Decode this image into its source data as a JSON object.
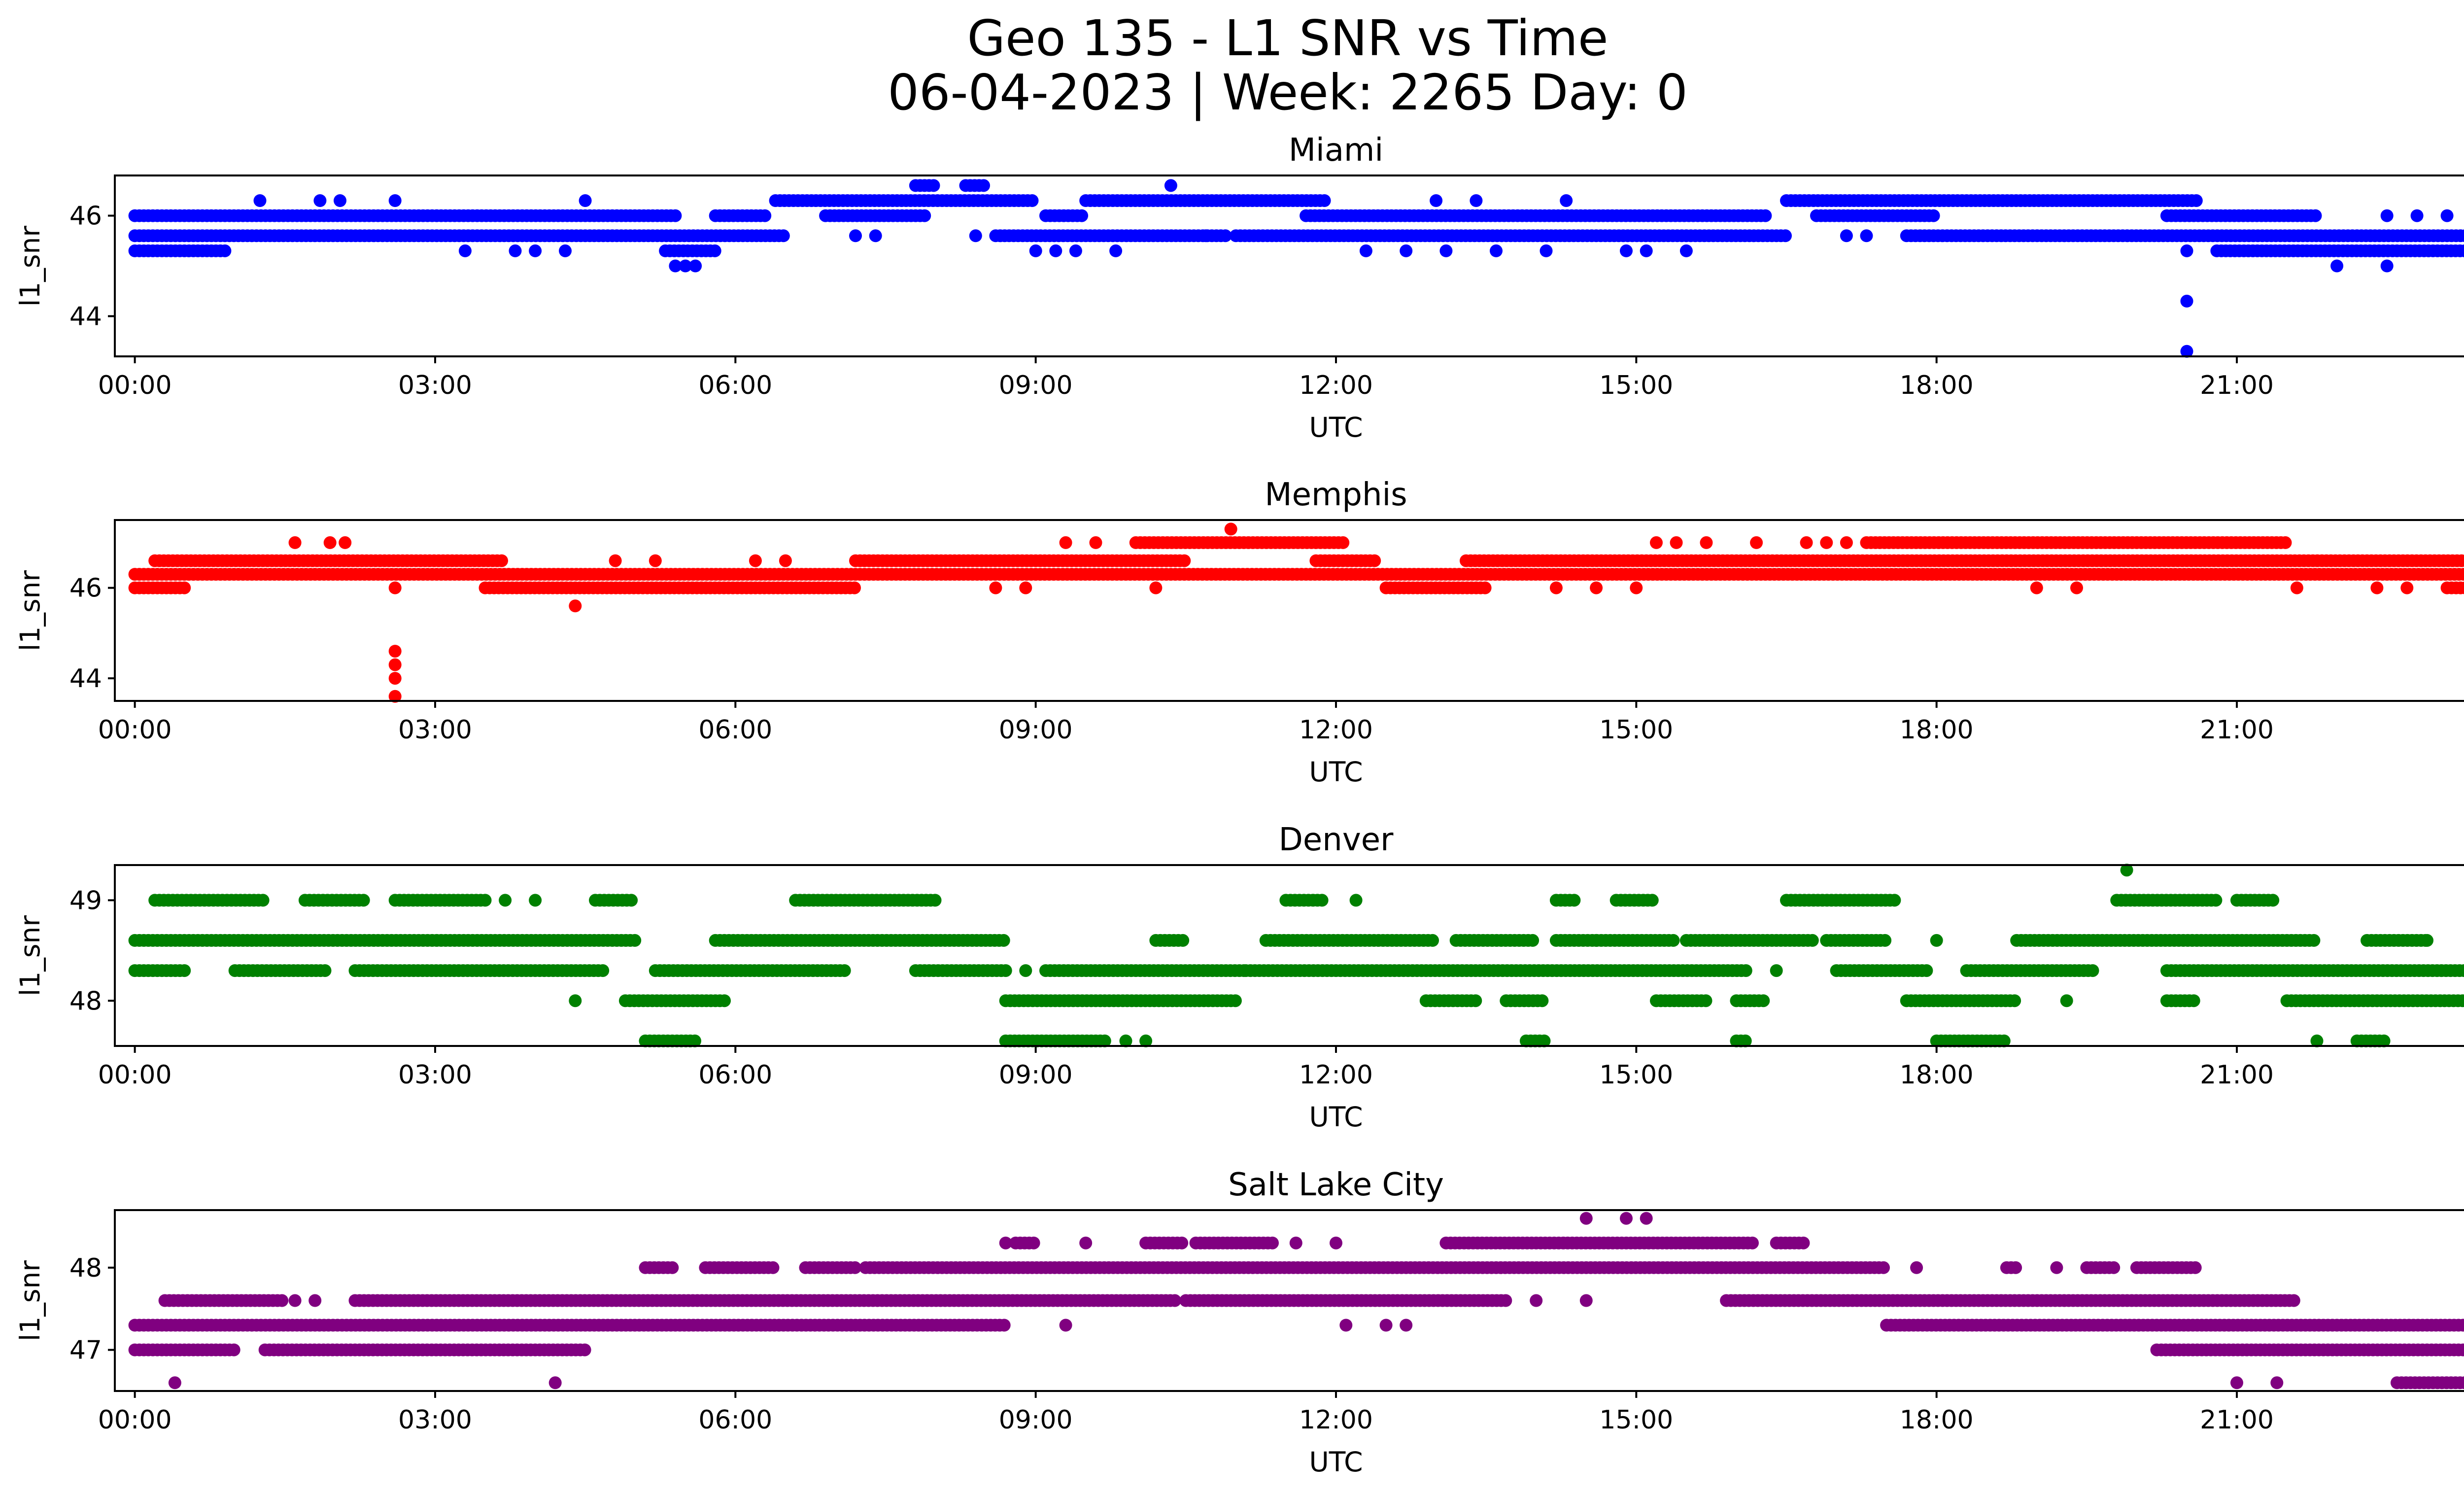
{
  "figure": {
    "title_line1": "Geo 135 - L1 SNR vs Time",
    "title_line2": "06-04-2023 | Week: 2265 Day: 0"
  },
  "chart_data": [
    {
      "type": "scatter",
      "title": "Miami",
      "xlabel": "UTC",
      "ylabel": "l1_snr",
      "color": "#0000ff",
      "xlim": [
        -0.2,
        24.2
      ],
      "ylim": [
        43.2,
        46.8
      ],
      "xticks": [
        "00:00",
        "03:00",
        "06:00",
        "09:00",
        "12:00",
        "15:00",
        "18:00",
        "21:00",
        "00:00"
      ],
      "yticks": [
        44,
        46
      ],
      "dense_bands": [
        {
          "y": 46.0,
          "ranges": [
            [
              0.0,
              5.4
            ],
            [
              5.8,
              6.3
            ],
            [
              6.9,
              7.9
            ],
            [
              9.1,
              9.5
            ],
            [
              11.7,
              16.3
            ],
            [
              16.8,
              18.0
            ],
            [
              20.3,
              21.8
            ]
          ]
        },
        {
          "y": 45.6,
          "ranges": [
            [
              0.0,
              6.5
            ],
            [
              8.6,
              10.9
            ],
            [
              11.0,
              16.5
            ],
            [
              17.7,
              24.0
            ]
          ]
        },
        {
          "y": 45.3,
          "ranges": [
            [
              0.0,
              0.9
            ],
            [
              5.3,
              5.8
            ],
            [
              20.8,
              24.0
            ]
          ]
        },
        {
          "y": 46.3,
          "ranges": [
            [
              6.4,
              9.0
            ],
            [
              9.5,
              11.9
            ],
            [
              16.5,
              20.6
            ]
          ]
        },
        {
          "y": 46.6,
          "ranges": [
            [
              7.8,
              8.0
            ],
            [
              8.3,
              8.5
            ]
          ]
        }
      ],
      "points": [
        [
          1.25,
          46.3
        ],
        [
          1.85,
          46.3
        ],
        [
          2.05,
          46.3
        ],
        [
          2.6,
          46.3
        ],
        [
          4.5,
          46.3
        ],
        [
          13.0,
          46.3
        ],
        [
          13.4,
          46.3
        ],
        [
          14.3,
          46.3
        ],
        [
          10.35,
          46.6
        ],
        [
          3.3,
          45.3
        ],
        [
          3.8,
          45.3
        ],
        [
          4.0,
          45.3
        ],
        [
          4.3,
          45.3
        ],
        [
          12.3,
          45.3
        ],
        [
          12.7,
          45.3
        ],
        [
          13.1,
          45.3
        ],
        [
          13.6,
          45.3
        ],
        [
          14.1,
          45.3
        ],
        [
          14.9,
          45.3
        ],
        [
          15.1,
          45.3
        ],
        [
          15.5,
          45.3
        ],
        [
          5.4,
          45.0
        ],
        [
          5.5,
          45.0
        ],
        [
          5.6,
          45.0
        ],
        [
          9.0,
          45.3
        ],
        [
          9.2,
          45.3
        ],
        [
          9.4,
          45.3
        ],
        [
          9.8,
          45.3
        ],
        [
          22.0,
          45.0
        ],
        [
          22.5,
          45.0
        ],
        [
          22.5,
          46.0
        ],
        [
          22.8,
          46.0
        ],
        [
          23.1,
          46.0
        ],
        [
          23.5,
          46.0
        ],
        [
          7.2,
          45.6
        ],
        [
          7.4,
          45.6
        ],
        [
          8.4,
          45.6
        ],
        [
          10.7,
          45.6
        ],
        [
          17.1,
          45.6
        ],
        [
          17.3,
          45.6
        ],
        [
          20.5,
          45.3
        ],
        [
          20.5,
          44.3
        ],
        [
          20.5,
          43.3
        ]
      ]
    },
    {
      "type": "scatter",
      "title": "Memphis",
      "xlabel": "UTC",
      "ylabel": "l1_snr",
      "color": "#ff0000",
      "xlim": [
        -0.2,
        24.2
      ],
      "ylim": [
        43.5,
        47.5
      ],
      "xticks": [
        "00:00",
        "03:00",
        "06:00",
        "09:00",
        "12:00",
        "15:00",
        "18:00",
        "21:00",
        "00:00"
      ],
      "yticks": [
        44,
        46
      ],
      "dense_bands": [
        {
          "y": 46.3,
          "ranges": [
            [
              0.0,
              24.0
            ]
          ]
        },
        {
          "y": 46.6,
          "ranges": [
            [
              0.2,
              3.7
            ],
            [
              7.2,
              10.5
            ],
            [
              11.8,
              12.4
            ],
            [
              13.3,
              23.8
            ]
          ]
        },
        {
          "y": 46.0,
          "ranges": [
            [
              0.0,
              0.5
            ],
            [
              3.5,
              7.2
            ],
            [
              12.5,
              13.5
            ],
            [
              23.1,
              24.0
            ]
          ]
        },
        {
          "y": 47.0,
          "ranges": [
            [
              10.0,
              12.1
            ],
            [
              17.3,
              21.5
            ]
          ]
        }
      ],
      "points": [
        [
          1.6,
          47.0
        ],
        [
          1.95,
          47.0
        ],
        [
          2.1,
          47.0
        ],
        [
          9.3,
          47.0
        ],
        [
          9.6,
          47.0
        ],
        [
          15.2,
          47.0
        ],
        [
          15.4,
          47.0
        ],
        [
          15.7,
          47.0
        ],
        [
          16.2,
          47.0
        ],
        [
          16.7,
          47.0
        ],
        [
          16.9,
          47.0
        ],
        [
          17.1,
          47.0
        ],
        [
          10.95,
          47.3
        ],
        [
          2.6,
          46.0
        ],
        [
          2.6,
          44.6
        ],
        [
          2.6,
          44.3
        ],
        [
          2.6,
          44.0
        ],
        [
          2.6,
          43.6
        ],
        [
          4.4,
          45.6
        ],
        [
          8.6,
          46.0
        ],
        [
          8.9,
          46.0
        ],
        [
          10.2,
          46.0
        ],
        [
          14.2,
          46.0
        ],
        [
          14.6,
          46.0
        ],
        [
          15.0,
          46.0
        ],
        [
          22.4,
          46.0
        ],
        [
          22.7,
          46.0
        ],
        [
          19.0,
          46.0
        ],
        [
          19.4,
          46.0
        ],
        [
          21.6,
          46.0
        ],
        [
          4.8,
          46.6
        ],
        [
          5.2,
          46.6
        ],
        [
          6.2,
          46.6
        ],
        [
          6.5,
          46.6
        ]
      ]
    },
    {
      "type": "scatter",
      "title": "Denver",
      "xlabel": "UTC",
      "ylabel": "l1_snr",
      "color": "#008000",
      "xlim": [
        -0.2,
        24.2
      ],
      "ylim": [
        47.55,
        49.35
      ],
      "xticks": [
        "00:00",
        "03:00",
        "06:00",
        "09:00",
        "12:00",
        "15:00",
        "18:00",
        "21:00",
        "00:00"
      ],
      "yticks": [
        48,
        49
      ],
      "dense_bands": [
        {
          "y": 48.6,
          "ranges": [
            [
              0.0,
              5.0
            ],
            [
              5.8,
              8.7
            ],
            [
              10.2,
              10.5
            ],
            [
              11.3,
              13.0
            ],
            [
              13.2,
              14.0
            ],
            [
              14.2,
              15.4
            ],
            [
              15.5,
              16.8
            ],
            [
              16.9,
              17.5
            ],
            [
              18.8,
              21.8
            ],
            [
              22.3,
              22.9
            ]
          ]
        },
        {
          "y": 48.3,
          "ranges": [
            [
              0.0,
              0.5
            ],
            [
              1.0,
              1.9
            ],
            [
              2.2,
              4.7
            ],
            [
              5.2,
              7.1
            ],
            [
              7.8,
              8.7
            ],
            [
              9.1,
              11.1
            ],
            [
              11.1,
              16.1
            ],
            [
              17.0,
              17.9
            ],
            [
              18.3,
              19.6
            ],
            [
              20.3,
              24.0
            ]
          ]
        },
        {
          "y": 49.0,
          "ranges": [
            [
              0.2,
              1.3
            ],
            [
              1.7,
              2.3
            ],
            [
              2.6,
              3.5
            ],
            [
              4.6,
              5.0
            ],
            [
              6.6,
              8.0
            ],
            [
              11.5,
              11.9
            ],
            [
              14.2,
              14.4
            ],
            [
              14.8,
              15.2
            ],
            [
              16.5,
              17.6
            ],
            [
              19.8,
              20.8
            ],
            [
              21.0,
              21.4
            ]
          ]
        },
        {
          "y": 48.0,
          "ranges": [
            [
              4.9,
              5.9
            ],
            [
              8.7,
              11.0
            ],
            [
              12.9,
              13.4
            ],
            [
              13.7,
              14.1
            ],
            [
              15.2,
              15.7
            ],
            [
              16.0,
              16.3
            ],
            [
              17.7,
              18.8
            ],
            [
              20.3,
              20.6
            ],
            [
              21.5,
              24.0
            ]
          ]
        },
        {
          "y": 47.6,
          "ranges": [
            [
              5.1,
              5.6
            ],
            [
              8.7,
              9.7
            ],
            [
              13.9,
              14.1
            ],
            [
              16.0,
              16.1
            ],
            [
              18.0,
              18.7
            ],
            [
              22.2,
              22.5
            ]
          ]
        }
      ],
      "points": [
        [
          4.4,
          48.0
        ],
        [
          3.7,
          49.0
        ],
        [
          4.0,
          49.0
        ],
        [
          12.2,
          49.0
        ],
        [
          14.6,
          48.6
        ],
        [
          18.0,
          48.6
        ],
        [
          16.4,
          48.3
        ],
        [
          8.9,
          48.3
        ],
        [
          9.9,
          47.6
        ],
        [
          10.1,
          47.6
        ],
        [
          19.3,
          48.0
        ],
        [
          21.8,
          47.6
        ],
        [
          22.9,
          48.6
        ],
        [
          19.9,
          49.3
        ]
      ]
    },
    {
      "type": "scatter",
      "title": "Salt Lake City",
      "xlabel": "UTC",
      "ylabel": "l1_snr",
      "color": "#800080",
      "xlim": [
        -0.2,
        24.2
      ],
      "ylim": [
        46.5,
        48.7
      ],
      "xticks": [
        "00:00",
        "03:00",
        "06:00",
        "09:00",
        "12:00",
        "15:00",
        "18:00",
        "21:00",
        "00:00"
      ],
      "yticks": [
        47,
        48
      ],
      "dense_bands": [
        {
          "y": 47.3,
          "ranges": [
            [
              0.0,
              8.7
            ],
            [
              17.5,
              24.0
            ]
          ]
        },
        {
          "y": 47.0,
          "ranges": [
            [
              0.0,
              1.0
            ],
            [
              1.3,
              4.5
            ],
            [
              20.2,
              24.0
            ]
          ]
        },
        {
          "y": 47.6,
          "ranges": [
            [
              0.3,
              1.5
            ],
            [
              2.2,
              10.4
            ],
            [
              10.5,
              13.7
            ],
            [
              15.9,
              21.6
            ]
          ]
        },
        {
          "y": 48.0,
          "ranges": [
            [
              5.1,
              5.4
            ],
            [
              5.7,
              6.4
            ],
            [
              6.7,
              7.2
            ],
            [
              7.3,
              17.5
            ],
            [
              18.7,
              18.8
            ],
            [
              19.5,
              19.8
            ],
            [
              20.0,
              20.6
            ]
          ]
        },
        {
          "y": 48.3,
          "ranges": [
            [
              8.8,
              9.0
            ],
            [
              10.1,
              10.5
            ],
            [
              10.6,
              11.4
            ],
            [
              13.1,
              16.2
            ],
            [
              16.4,
              16.7
            ]
          ]
        },
        {
          "y": 46.6,
          "ranges": [
            [
              22.6,
              23.9
            ]
          ]
        }
      ],
      "points": [
        [
          0.4,
          46.6
        ],
        [
          4.2,
          46.6
        ],
        [
          21.0,
          46.6
        ],
        [
          21.4,
          46.6
        ],
        [
          9.3,
          47.3
        ],
        [
          12.1,
          47.3
        ],
        [
          12.5,
          47.3
        ],
        [
          12.7,
          47.3
        ],
        [
          8.7,
          48.3
        ],
        [
          9.5,
          48.3
        ],
        [
          11.6,
          48.3
        ],
        [
          12.0,
          48.3
        ],
        [
          14.5,
          48.6
        ],
        [
          14.9,
          48.6
        ],
        [
          15.1,
          48.6
        ],
        [
          17.8,
          48.0
        ],
        [
          19.2,
          48.0
        ],
        [
          14.0,
          47.6
        ],
        [
          14.5,
          47.6
        ],
        [
          1.6,
          47.6
        ],
        [
          1.8,
          47.6
        ]
      ]
    }
  ]
}
